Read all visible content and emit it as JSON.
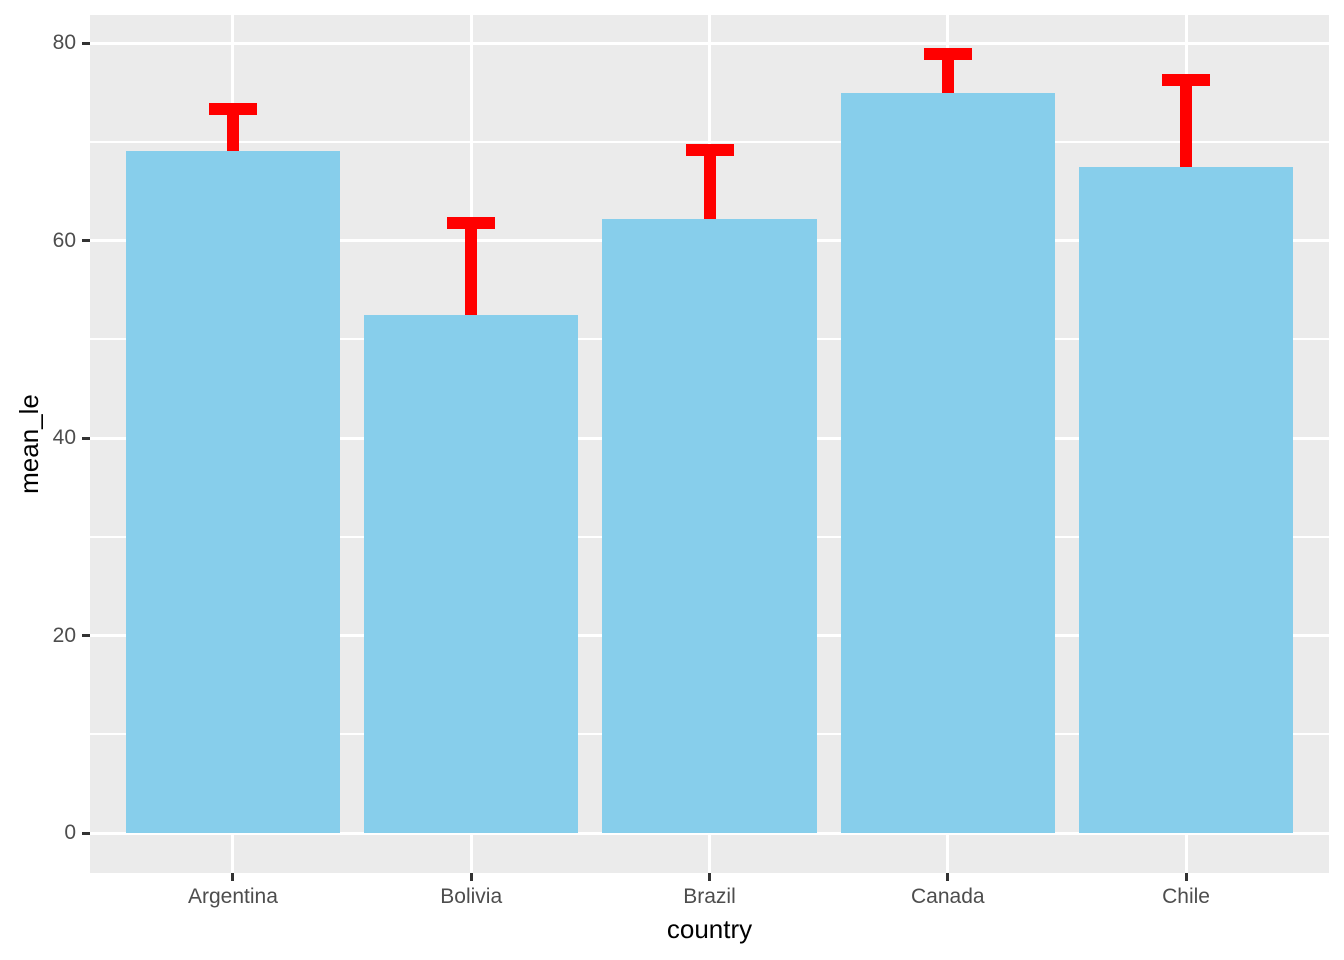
{
  "chart_data": {
    "type": "bar",
    "title": "",
    "xlabel": "country",
    "ylabel": "mean_le",
    "categories": [
      "Argentina",
      "Bolivia",
      "Brazil",
      "Canada",
      "Chile"
    ],
    "series": [
      {
        "name": "mean_le",
        "values": [
          69.1,
          52.5,
          62.2,
          74.9,
          67.4
        ]
      }
    ],
    "error_bars": {
      "type": "upper-only",
      "upper": [
        73.3,
        61.8,
        69.2,
        78.9,
        76.3
      ]
    },
    "y_ticks": [
      0,
      20,
      40,
      60,
      80
    ],
    "y_tick_labels": [
      "0",
      "20",
      "40",
      "60",
      "80"
    ],
    "ylim": [
      -4.1,
      82.9
    ],
    "grid": "major-and-minor, white on gray panel",
    "legend": false,
    "colors": {
      "bar_fill": "#87CEEB",
      "error_bar": "#FF0000",
      "panel_bg": "#EBEBEB",
      "grid": "#FFFFFF",
      "tick_text": "#4D4D4D",
      "tick_mark": "#333333",
      "axis_title": "#000000",
      "background": "#FFFFFF"
    }
  }
}
